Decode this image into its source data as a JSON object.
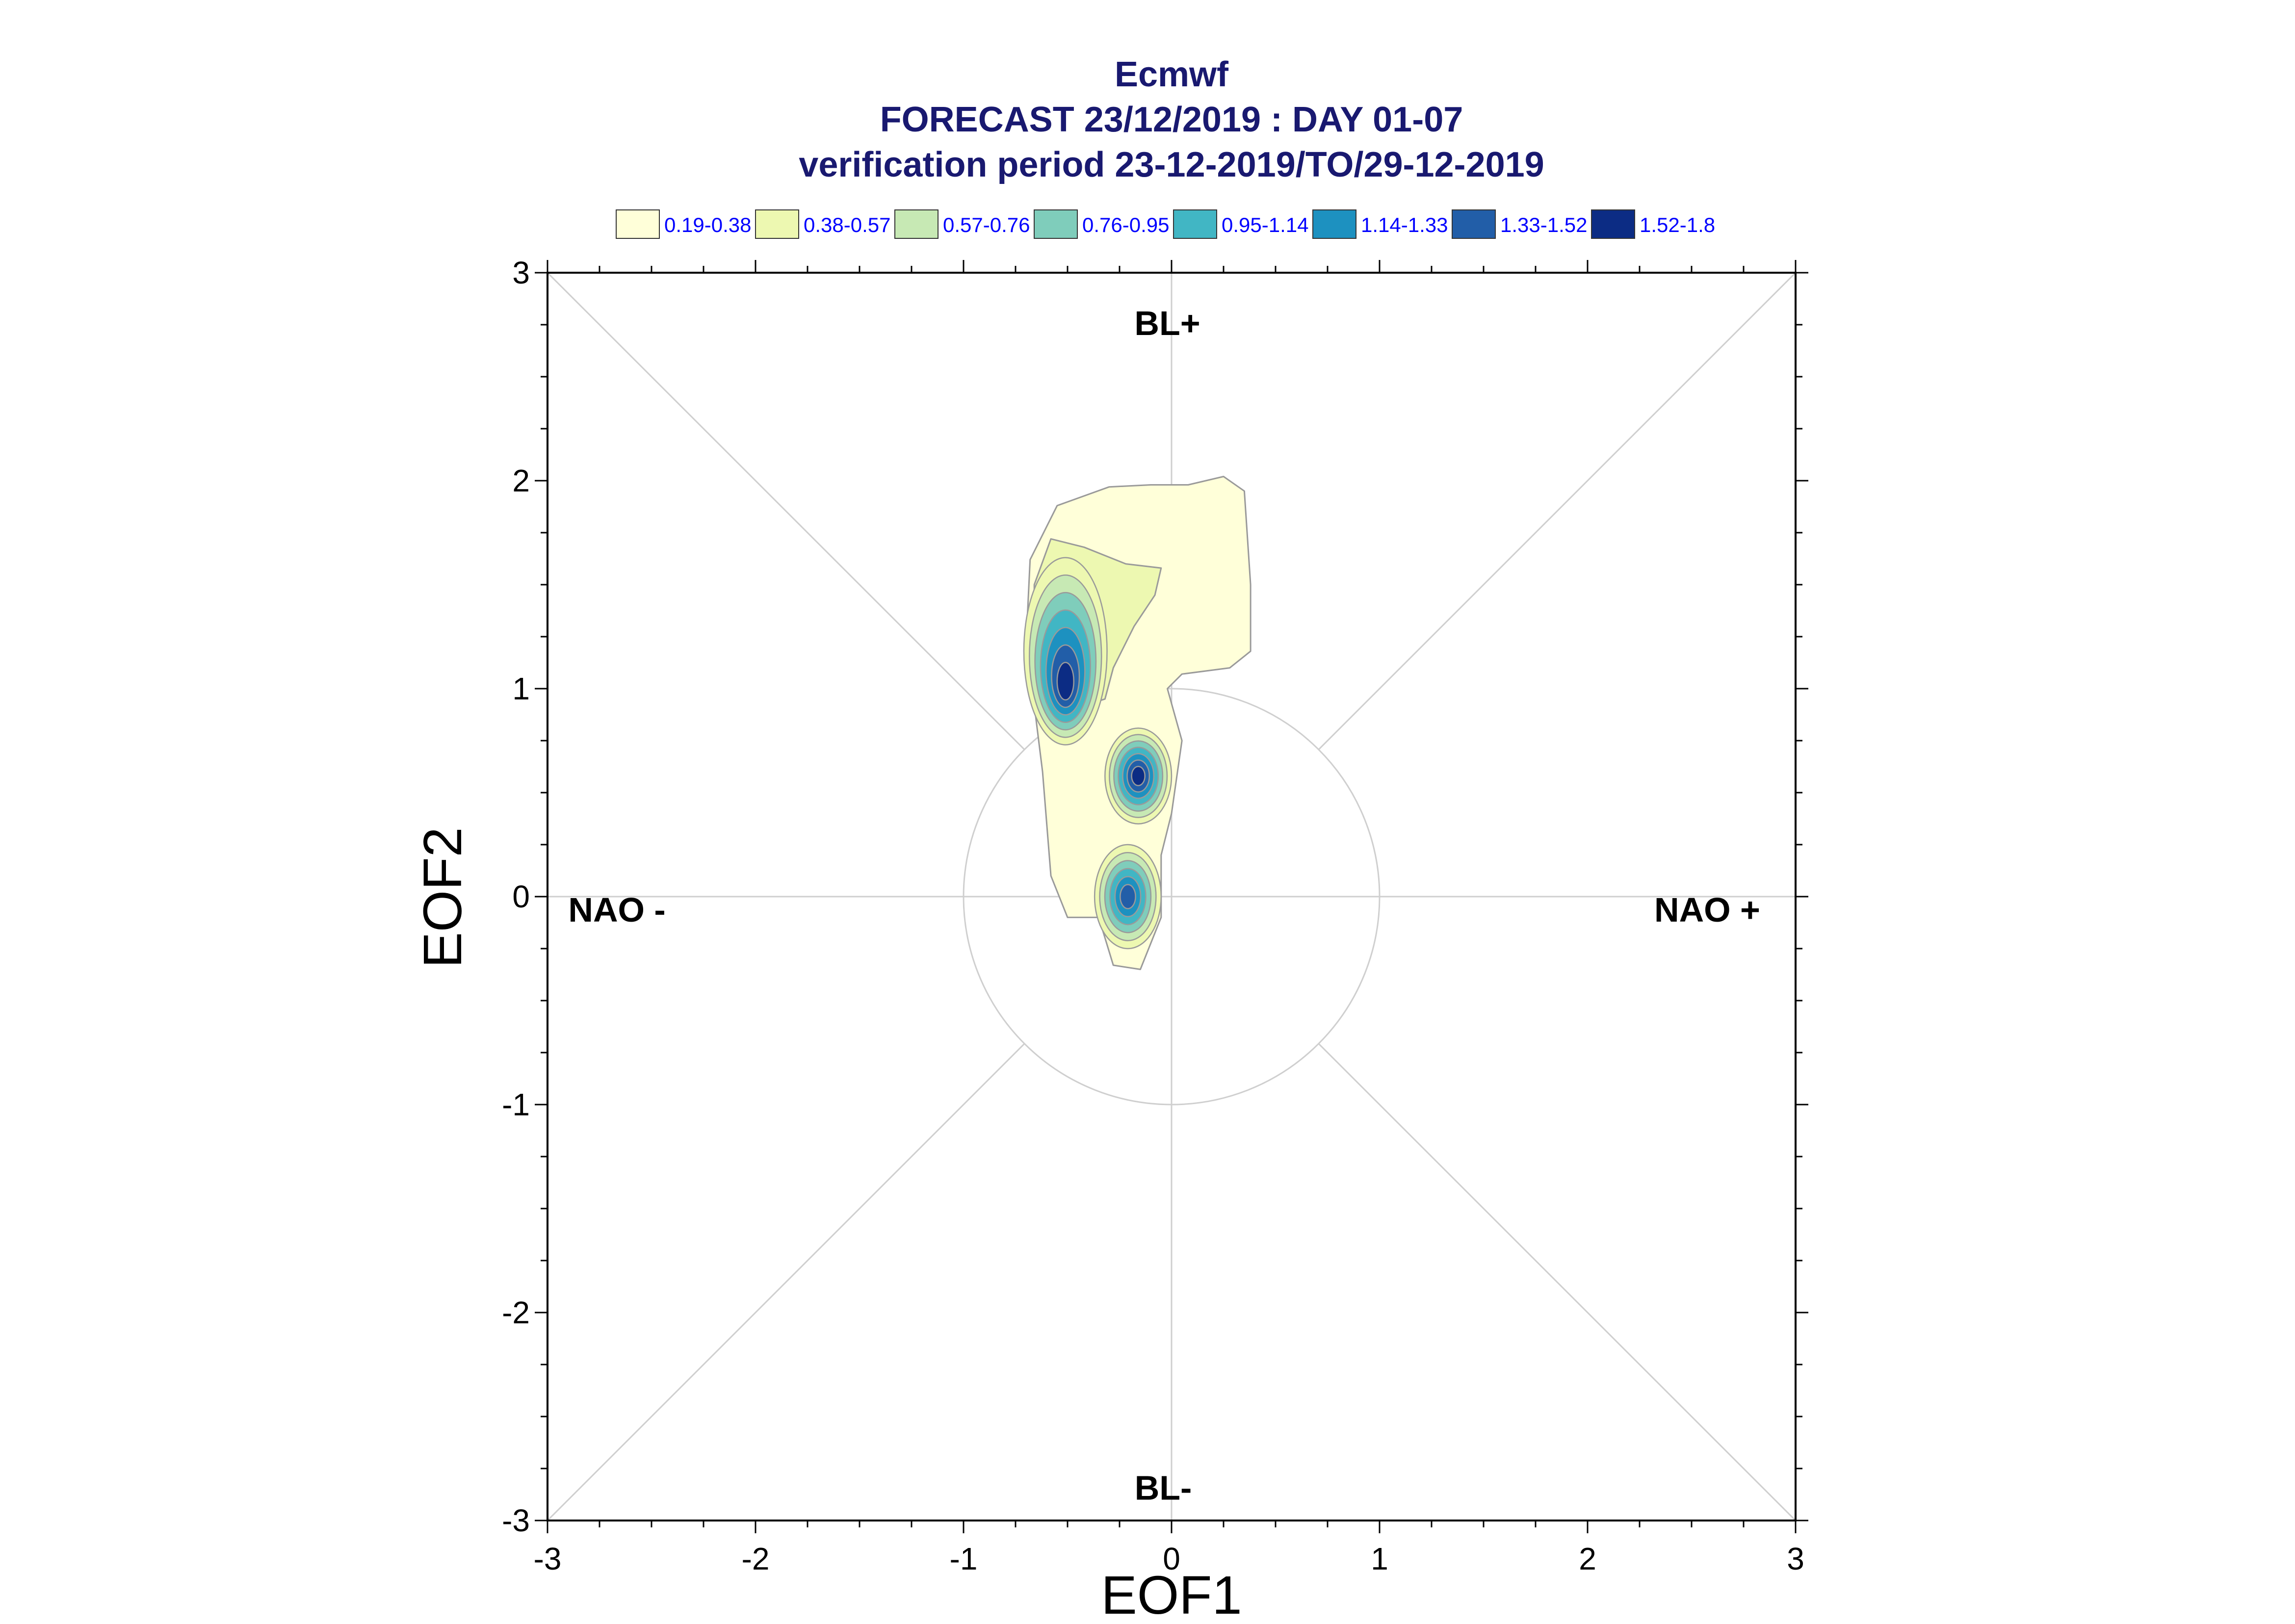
{
  "chart_data": {
    "type": "contour",
    "title_lines": [
      "Ecmwf",
      "FORECAST 23/12/2019 : DAY 01-07",
      "verification period 23-12-2019/TO/29-12-2019"
    ],
    "xlabel": "EOF1",
    "ylabel": "EOF2",
    "xlim": [
      -3,
      3
    ],
    "ylim": [
      -3,
      3
    ],
    "xticks": [
      "-3",
      "-2",
      "-1",
      "0",
      "1",
      "2",
      "3"
    ],
    "yticks": [
      "-3",
      "-2",
      "-1",
      "0",
      "1",
      "2",
      "3"
    ],
    "quadrant_labels": {
      "top": "BL+",
      "bottom": "BL-",
      "left": "NAO -",
      "right": "NAO +"
    },
    "reference_circle_radius": 1,
    "legend": [
      {
        "label": "0.19-0.38",
        "color": "#ffffd9"
      },
      {
        "label": "0.38-0.57",
        "color": "#edf8b1"
      },
      {
        "label": "0.57-0.76",
        "color": "#c7e9b4"
      },
      {
        "label": "0.76-0.95",
        "color": "#7fcdbb"
      },
      {
        "label": "0.95-1.14",
        "color": "#41b6c4"
      },
      {
        "label": "1.14-1.33",
        "color": "#1d91c0"
      },
      {
        "label": "1.33-1.52",
        "color": "#225ea8"
      },
      {
        "label": "1.52-1.8",
        "color": "#0c2c84"
      }
    ],
    "density_centers": [
      {
        "x": -0.5,
        "y": 1.05,
        "max_level": "1.52-1.8"
      },
      {
        "x": -0.15,
        "y": 0.58,
        "max_level": "1.52-1.8"
      },
      {
        "x": -0.2,
        "y": 0.0,
        "max_level": "1.33-1.52"
      }
    ],
    "grid": false
  }
}
